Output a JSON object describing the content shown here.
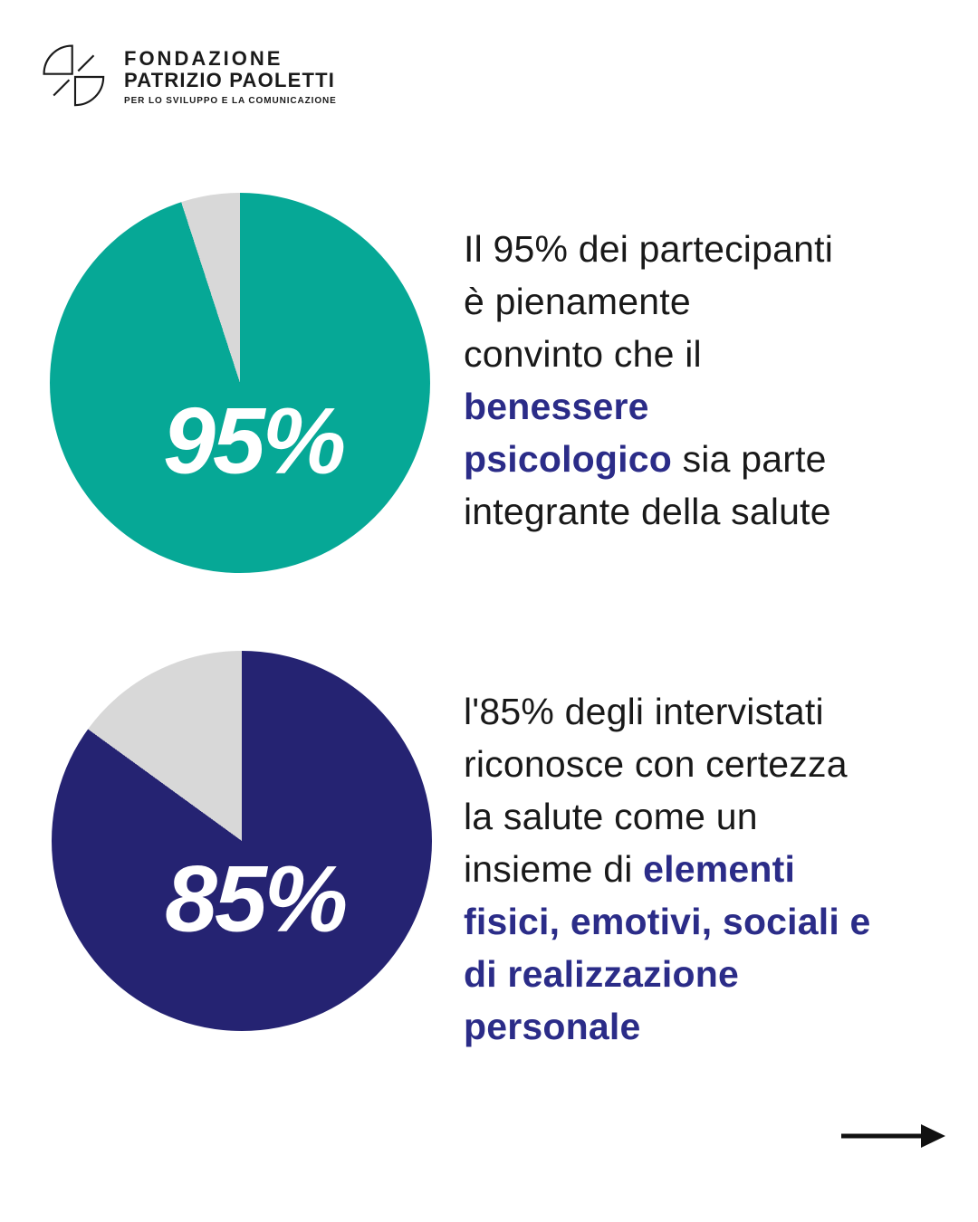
{
  "brand": {
    "name_line1": "FONDAZIONE",
    "name_line2": "PATRIZIO PAOLETTI",
    "tagline": "PER LO SVILUPPO E LA COMUNICAZIONE"
  },
  "colors": {
    "teal": "#06A896",
    "navy_pie": "#252372",
    "navy_highlight": "#2B2C88",
    "slice_gray": "#D8D8D8",
    "text_black": "#191919",
    "background": "#FFFFFF",
    "arrow_black": "#111111"
  },
  "chart_data": [
    {
      "type": "pie",
      "categories": [
        "highlighted share",
        "remainder"
      ],
      "values": [
        95,
        5
      ],
      "colors": [
        "#06A896",
        "#D8D8D8"
      ],
      "center_label": "95%",
      "label_color": "#FFFFFF",
      "start_angle_deg": 0,
      "remainder_position": "counterclockwise from 12 o'clock",
      "legend": "none"
    },
    {
      "type": "pie",
      "categories": [
        "highlighted share",
        "remainder"
      ],
      "values": [
        85,
        15
      ],
      "colors": [
        "#252372",
        "#D8D8D8"
      ],
      "center_label": "85%",
      "label_color": "#FFFFFF",
      "start_angle_deg": 0,
      "remainder_position": "counterclockwise from 12 o'clock",
      "legend": "none"
    }
  ],
  "sections": [
    {
      "runs": [
        {
          "text": "Il 95% dei partecipanti\nè pienamente\nconvinto che il\n",
          "style": "normal"
        },
        {
          "text": "benessere\npsicologico",
          "style": "highlight"
        },
        {
          "text": " sia parte\nintegrante della salute",
          "style": "normal"
        }
      ]
    },
    {
      "runs": [
        {
          "text": "l'85% degli intervistati\nriconosce con certezza\nla salute come un\ninsieme di ",
          "style": "normal"
        },
        {
          "text": "elementi\nfisici, emotivi, sociali e\ndi realizzazione\npersonale",
          "style": "highlight"
        }
      ]
    }
  ],
  "footer": {
    "arrow_icon": "right-arrow"
  }
}
